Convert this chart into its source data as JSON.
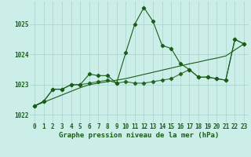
{
  "xlabel": "Graphe pression niveau de la mer (hPa)",
  "bg_color": "#cceee8",
  "grid_color": "#aad8d0",
  "line_color": "#1a5c1a",
  "ylim": [
    1021.75,
    1025.75
  ],
  "xlim": [
    -0.5,
    23.5
  ],
  "yticks": [
    1022,
    1023,
    1024,
    1025
  ],
  "xticks": [
    0,
    1,
    2,
    3,
    4,
    5,
    6,
    7,
    8,
    9,
    10,
    11,
    12,
    13,
    14,
    15,
    16,
    17,
    18,
    19,
    20,
    21,
    22,
    23
  ],
  "series1_x": [
    0,
    1,
    2,
    3,
    4,
    5,
    6,
    7,
    8,
    9,
    10,
    11,
    12,
    13,
    14,
    15,
    16,
    17,
    18,
    19,
    20,
    21,
    22,
    23
  ],
  "series1_y": [
    1022.3,
    1022.45,
    1022.85,
    1022.85,
    1023.0,
    1023.0,
    1023.35,
    1023.3,
    1023.3,
    1023.05,
    1024.05,
    1025.0,
    1025.55,
    1025.1,
    1024.3,
    1024.2,
    1023.7,
    1023.5,
    1023.25,
    1023.25,
    1023.2,
    1023.15,
    1024.5,
    1024.35
  ],
  "series2_x": [
    0,
    1,
    2,
    3,
    4,
    5,
    6,
    7,
    8,
    9,
    10,
    11,
    12,
    13,
    14,
    15,
    16,
    17,
    18,
    19,
    20,
    21,
    22,
    23
  ],
  "series2_y": [
    1022.3,
    1022.45,
    1022.85,
    1022.85,
    1023.0,
    1023.0,
    1023.05,
    1023.1,
    1023.15,
    1023.05,
    1023.1,
    1023.05,
    1023.05,
    1023.1,
    1023.15,
    1023.2,
    1023.35,
    1023.5,
    1023.25,
    1023.25,
    1023.2,
    1023.15,
    1024.5,
    1024.35
  ],
  "series3_x": [
    0,
    1,
    2,
    3,
    4,
    5,
    6,
    7,
    8,
    9,
    10,
    11,
    12,
    13,
    14,
    15,
    16,
    17,
    18,
    19,
    20,
    21,
    22,
    23
  ],
  "series3_y": [
    1022.3,
    1022.42,
    1022.54,
    1022.66,
    1022.78,
    1022.9,
    1023.0,
    1023.05,
    1023.1,
    1023.15,
    1023.2,
    1023.27,
    1023.34,
    1023.41,
    1023.48,
    1023.55,
    1023.62,
    1023.69,
    1023.75,
    1023.82,
    1023.88,
    1023.95,
    1024.15,
    1024.35
  ],
  "tick_fontsize": 5.5,
  "label_fontsize": 6.5
}
